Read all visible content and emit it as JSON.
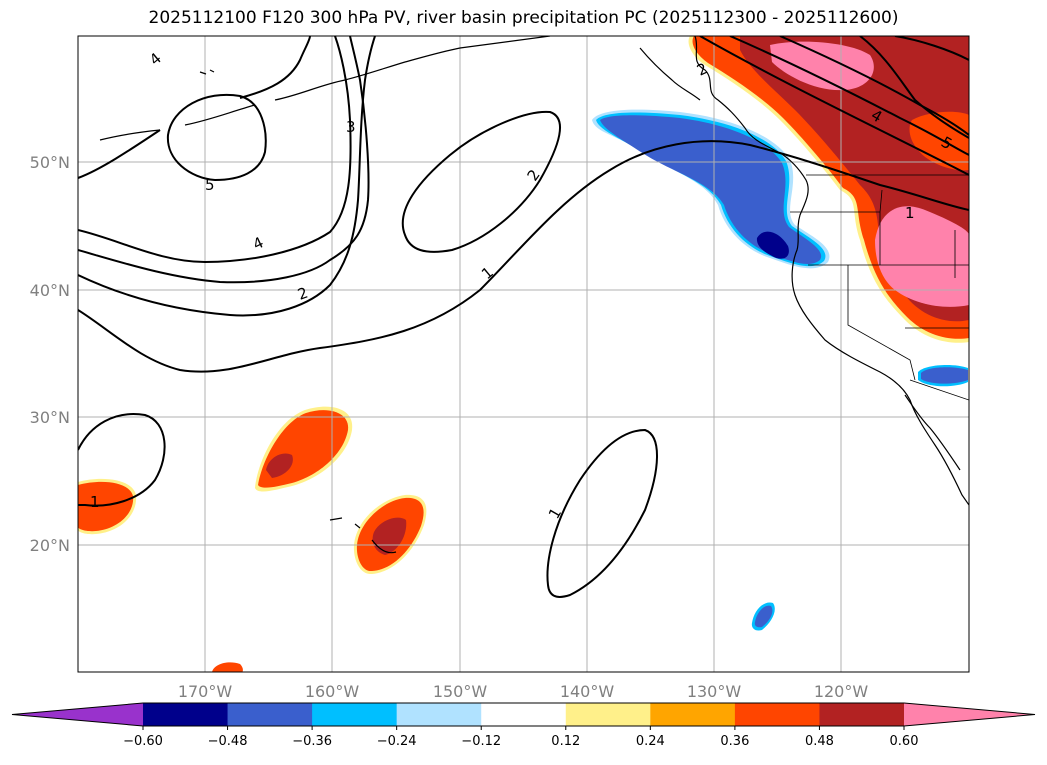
{
  "title": "2025112100 F120 300 hPa PV, river basin precipitation PC (2025112300 - 2025112600)",
  "map": {
    "lon_labels": [
      "170°W",
      "160°W",
      "150°W",
      "140°W",
      "130°W",
      "120°W"
    ],
    "lat_labels": [
      "50°N",
      "40°N",
      "30°N",
      "20°N"
    ],
    "pv_contour_labels": [
      "4",
      "3",
      "5",
      "4",
      "2",
      "2",
      "1",
      "2",
      "1",
      "4",
      "5",
      "1",
      "1"
    ]
  },
  "colorbar": {
    "ticks": [
      "−0.60",
      "−0.48",
      "−0.36",
      "−0.24",
      "−0.12",
      "0.12",
      "0.24",
      "0.36",
      "0.48",
      "0.60"
    ],
    "colors": [
      "#9932cc",
      "#00008b",
      "#3a5fcd",
      "#00bfff",
      "#b0e2ff",
      "#ffffff",
      "#fff08a",
      "#ffa500",
      "#ff4500",
      "#b22222",
      "#ff82ab",
      "#ff82ab"
    ]
  }
}
